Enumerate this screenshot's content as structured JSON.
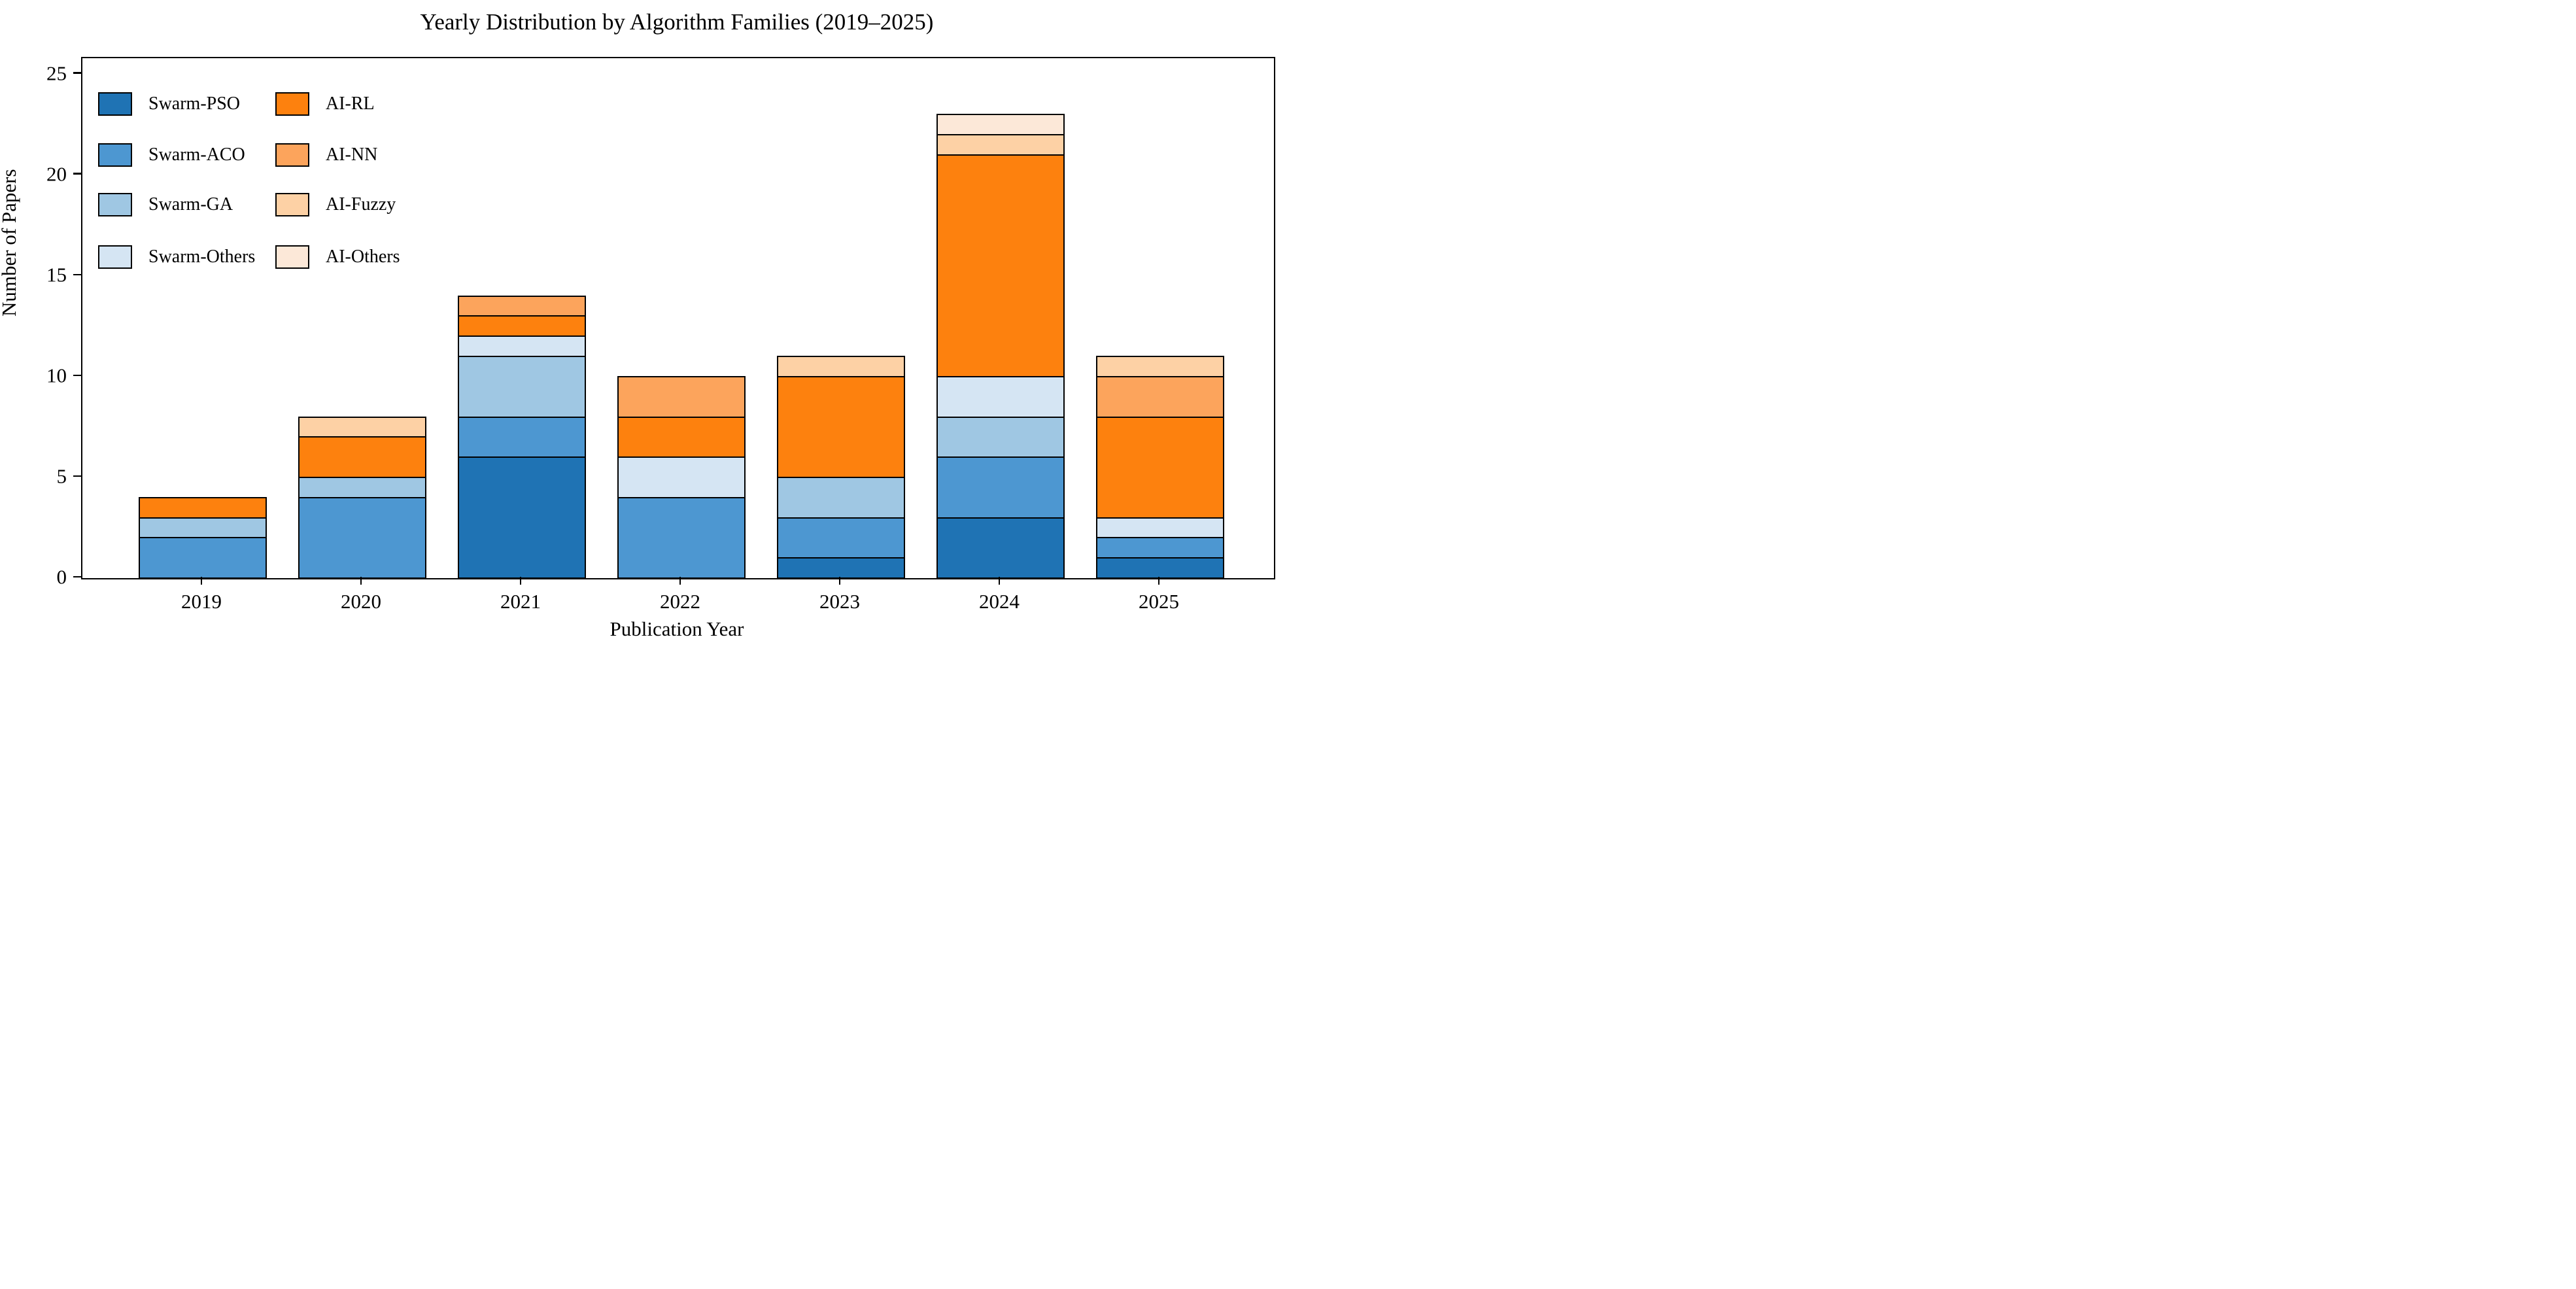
{
  "chart_data": {
    "type": "bar",
    "stacked": true,
    "title": "Yearly Distribution by Algorithm Families (2019–2025)",
    "xlabel": "Publication Year",
    "ylabel": "Number of Papers",
    "categories": [
      "2019",
      "2020",
      "2021",
      "2022",
      "2023",
      "2024",
      "2025"
    ],
    "series": [
      {
        "name": "Swarm-PSO",
        "color": "#1f73b4",
        "values": [
          0,
          0,
          6,
          0,
          1,
          3,
          1
        ]
      },
      {
        "name": "Swarm-ACO",
        "color": "#4d97d1",
        "values": [
          2,
          4,
          2,
          4,
          2,
          3,
          1
        ]
      },
      {
        "name": "Swarm-GA",
        "color": "#9fc7e3",
        "values": [
          1,
          1,
          3,
          0,
          2,
          2,
          0
        ]
      },
      {
        "name": "Swarm-Others",
        "color": "#d5e5f3",
        "values": [
          0,
          0,
          1,
          2,
          0,
          2,
          1
        ]
      },
      {
        "name": "AI-RL",
        "color": "#fd810e",
        "values": [
          1,
          2,
          1,
          2,
          5,
          11,
          5
        ]
      },
      {
        "name": "AI-NN",
        "color": "#fca45c",
        "values": [
          0,
          0,
          1,
          2,
          0,
          0,
          2
        ]
      },
      {
        "name": "AI-Fuzzy",
        "color": "#fdd1a5",
        "values": [
          0,
          1,
          0,
          0,
          1,
          1,
          1
        ]
      },
      {
        "name": "AI-Others",
        "color": "#fce8d8",
        "values": [
          0,
          0,
          0,
          0,
          0,
          1,
          0
        ]
      }
    ],
    "yticks": [
      0,
      5,
      10,
      15,
      20,
      25
    ],
    "ylim": [
      0,
      25.8
    ],
    "xlim": [
      -0.754,
      6.713
    ],
    "bar_width": 0.8,
    "grid": false,
    "edge_color": "#000000",
    "background": "#ffffff",
    "legend": {
      "position": "upper-left",
      "frame": false,
      "columns": [
        [
          "Swarm-PSO",
          "Swarm-ACO",
          "Swarm-GA",
          "Swarm-Others"
        ],
        [
          "AI-RL",
          "AI-NN",
          "AI-Fuzzy",
          "AI-Others"
        ]
      ]
    }
  }
}
